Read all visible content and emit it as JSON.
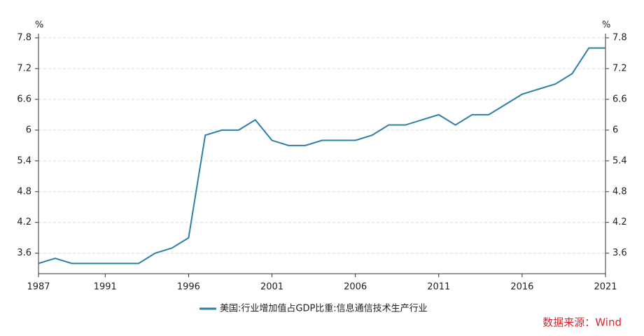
{
  "chart_data": {
    "type": "line",
    "y_unit": "%",
    "y2_unit": "%",
    "x": [
      1987,
      1988,
      1989,
      1990,
      1991,
      1992,
      1993,
      1994,
      1995,
      1996,
      1997,
      1998,
      1999,
      2000,
      2001,
      2002,
      2003,
      2004,
      2005,
      2006,
      2007,
      2008,
      2009,
      2010,
      2011,
      2012,
      2013,
      2014,
      2015,
      2016,
      2017,
      2018,
      2019,
      2020,
      2021
    ],
    "series": [
      {
        "name": "美国:行业增加值占GDP比重:信息通信技术生产行业",
        "color": "#2e7fa8",
        "values": [
          3.4,
          3.5,
          3.4,
          3.4,
          3.4,
          3.4,
          3.4,
          3.6,
          3.7,
          3.9,
          5.9,
          6.0,
          6.0,
          6.2,
          5.8,
          5.7,
          5.7,
          5.8,
          5.8,
          5.8,
          5.9,
          6.1,
          6.1,
          6.2,
          6.3,
          6.1,
          6.3,
          6.3,
          6.5,
          6.7,
          6.8,
          6.9,
          7.1,
          7.6,
          7.6
        ]
      }
    ],
    "xlim": [
      1987,
      2021
    ],
    "xticks": [
      1987,
      1991,
      1996,
      2001,
      2006,
      2011,
      2016,
      2021
    ],
    "ylim": [
      3.2,
      7.8
    ],
    "yticks": [
      3.6,
      4.2,
      4.8,
      5.4,
      6,
      6.6,
      7.2,
      7.8
    ],
    "y2lim": [
      3.2,
      7.8
    ],
    "y2ticks": [
      3.6,
      4.2,
      4.8,
      5.4,
      6,
      6.6,
      7.2,
      7.8
    ],
    "grid": true,
    "legend": "bottom",
    "source": "数据来源：Wind"
  }
}
